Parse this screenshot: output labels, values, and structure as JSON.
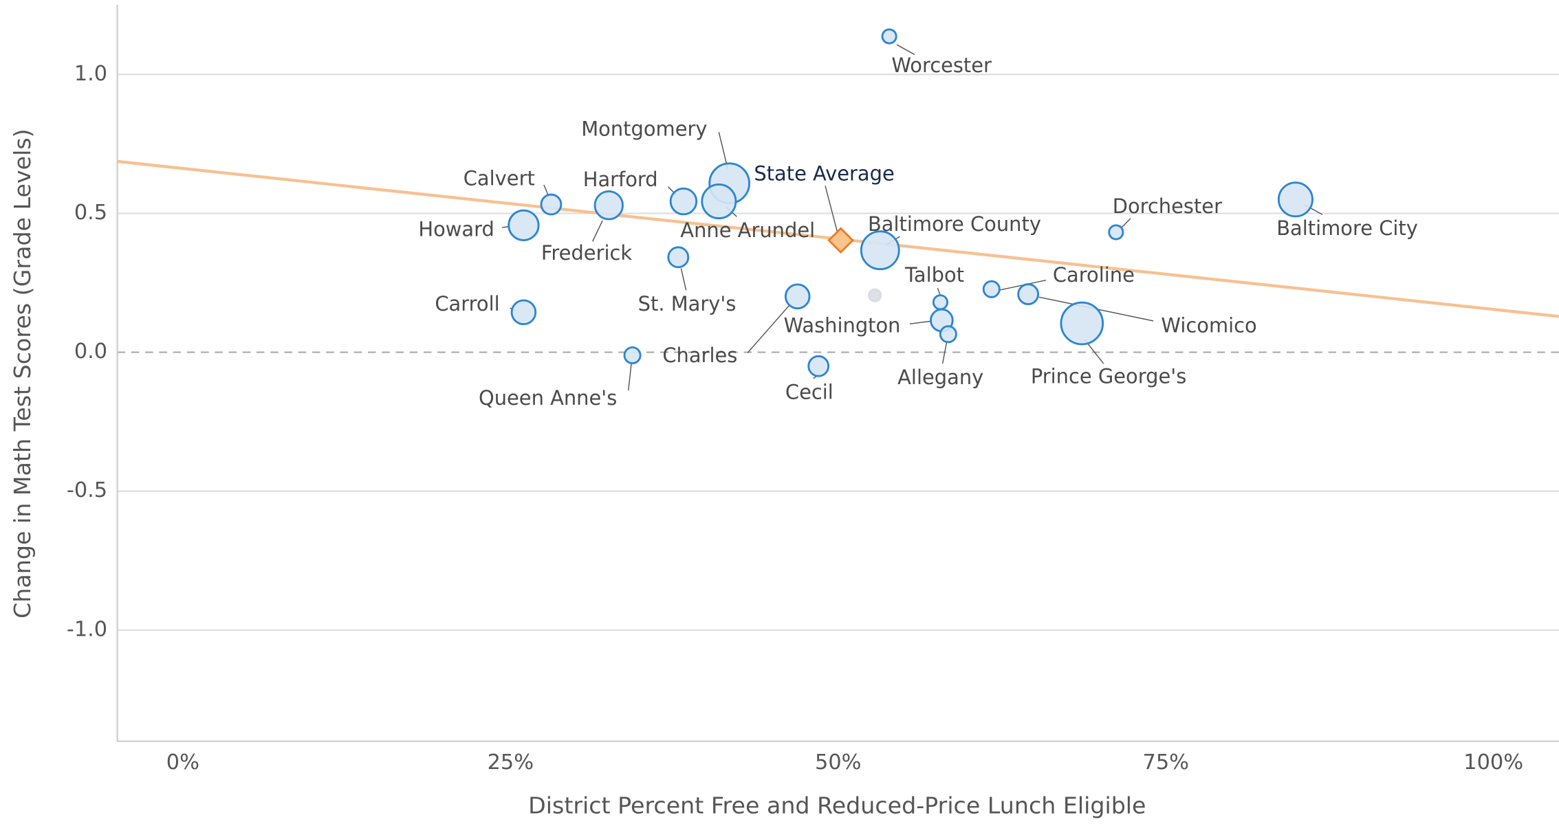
{
  "chart_data": {
    "type": "scatter",
    "x_label": "District Percent Free and Reduced-Price Lunch Eligible",
    "y_label": "Change in Math Test Scores (Grade Levels)",
    "xlim": [
      -5,
      105
    ],
    "ylim": [
      -1.4,
      1.25
    ],
    "xticks": [
      {
        "value": 0,
        "label": "0%"
      },
      {
        "value": 25,
        "label": "25%"
      },
      {
        "value": 50,
        "label": "50%"
      },
      {
        "value": 75,
        "label": "75%"
      },
      {
        "value": 100,
        "label": "100%"
      }
    ],
    "yticks": [
      {
        "value": -1,
        "label": "-1.0"
      },
      -0.5,
      {
        "value": 0,
        "label": "0.0"
      },
      0.5,
      {
        "value": 1,
        "label": "1.0"
      }
    ],
    "grid": true,
    "zero_line": true,
    "series": [
      {
        "color": "#d6e6f5",
        "edge": "#2e86d1",
        "labels": [
          "Worcester",
          "Montgomery",
          "Anne Arundel",
          "Harford",
          "Calvert",
          "Frederick",
          "Howard",
          "St. Mary's",
          "Baltimore County",
          "Dorchester",
          "Baltimore City",
          "Carroll",
          "Queen Anne's",
          "Charles",
          "Cecil",
          "Talbot",
          "Washington",
          "Allegany",
          "Caroline",
          "Wicomico",
          "Prince George's"
        ],
        "x": [
          53.9,
          41.7,
          40.9,
          38.2,
          28.1,
          32.5,
          26.0,
          37.8,
          53.2,
          71.2,
          84.9,
          26.0,
          34.3,
          46.9,
          48.5,
          57.8,
          57.9,
          58.4,
          61.7,
          64.5,
          68.6
        ],
        "values": [
          1.137,
          0.608,
          0.543,
          0.543,
          0.532,
          0.529,
          0.457,
          0.342,
          0.367,
          0.432,
          0.55,
          0.144,
          -0.011,
          0.201,
          -0.05,
          0.18,
          0.115,
          0.065,
          0.227,
          0.209,
          0.104
        ],
        "sizes": [
          7,
          20,
          17,
          13,
          10,
          14,
          15,
          10,
          19,
          7,
          17,
          12,
          8,
          12,
          10,
          7,
          11,
          8,
          8,
          10,
          21
        ]
      },
      {
        "color": "#d9dde3",
        "edge": "#d9dde3",
        "x": [
          52.8
        ],
        "values": [
          0.205
        ],
        "sizes": [
          6
        ]
      }
    ],
    "highlight": {
      "name": "State Average",
      "x": 50.2,
      "y": 0.403,
      "color": "#f9c48e",
      "edge": "#ef7d22"
    },
    "trend": {
      "x": [
        -5,
        105
      ],
      "y": [
        0.687,
        0.129
      ],
      "color": "#f7c192"
    }
  }
}
